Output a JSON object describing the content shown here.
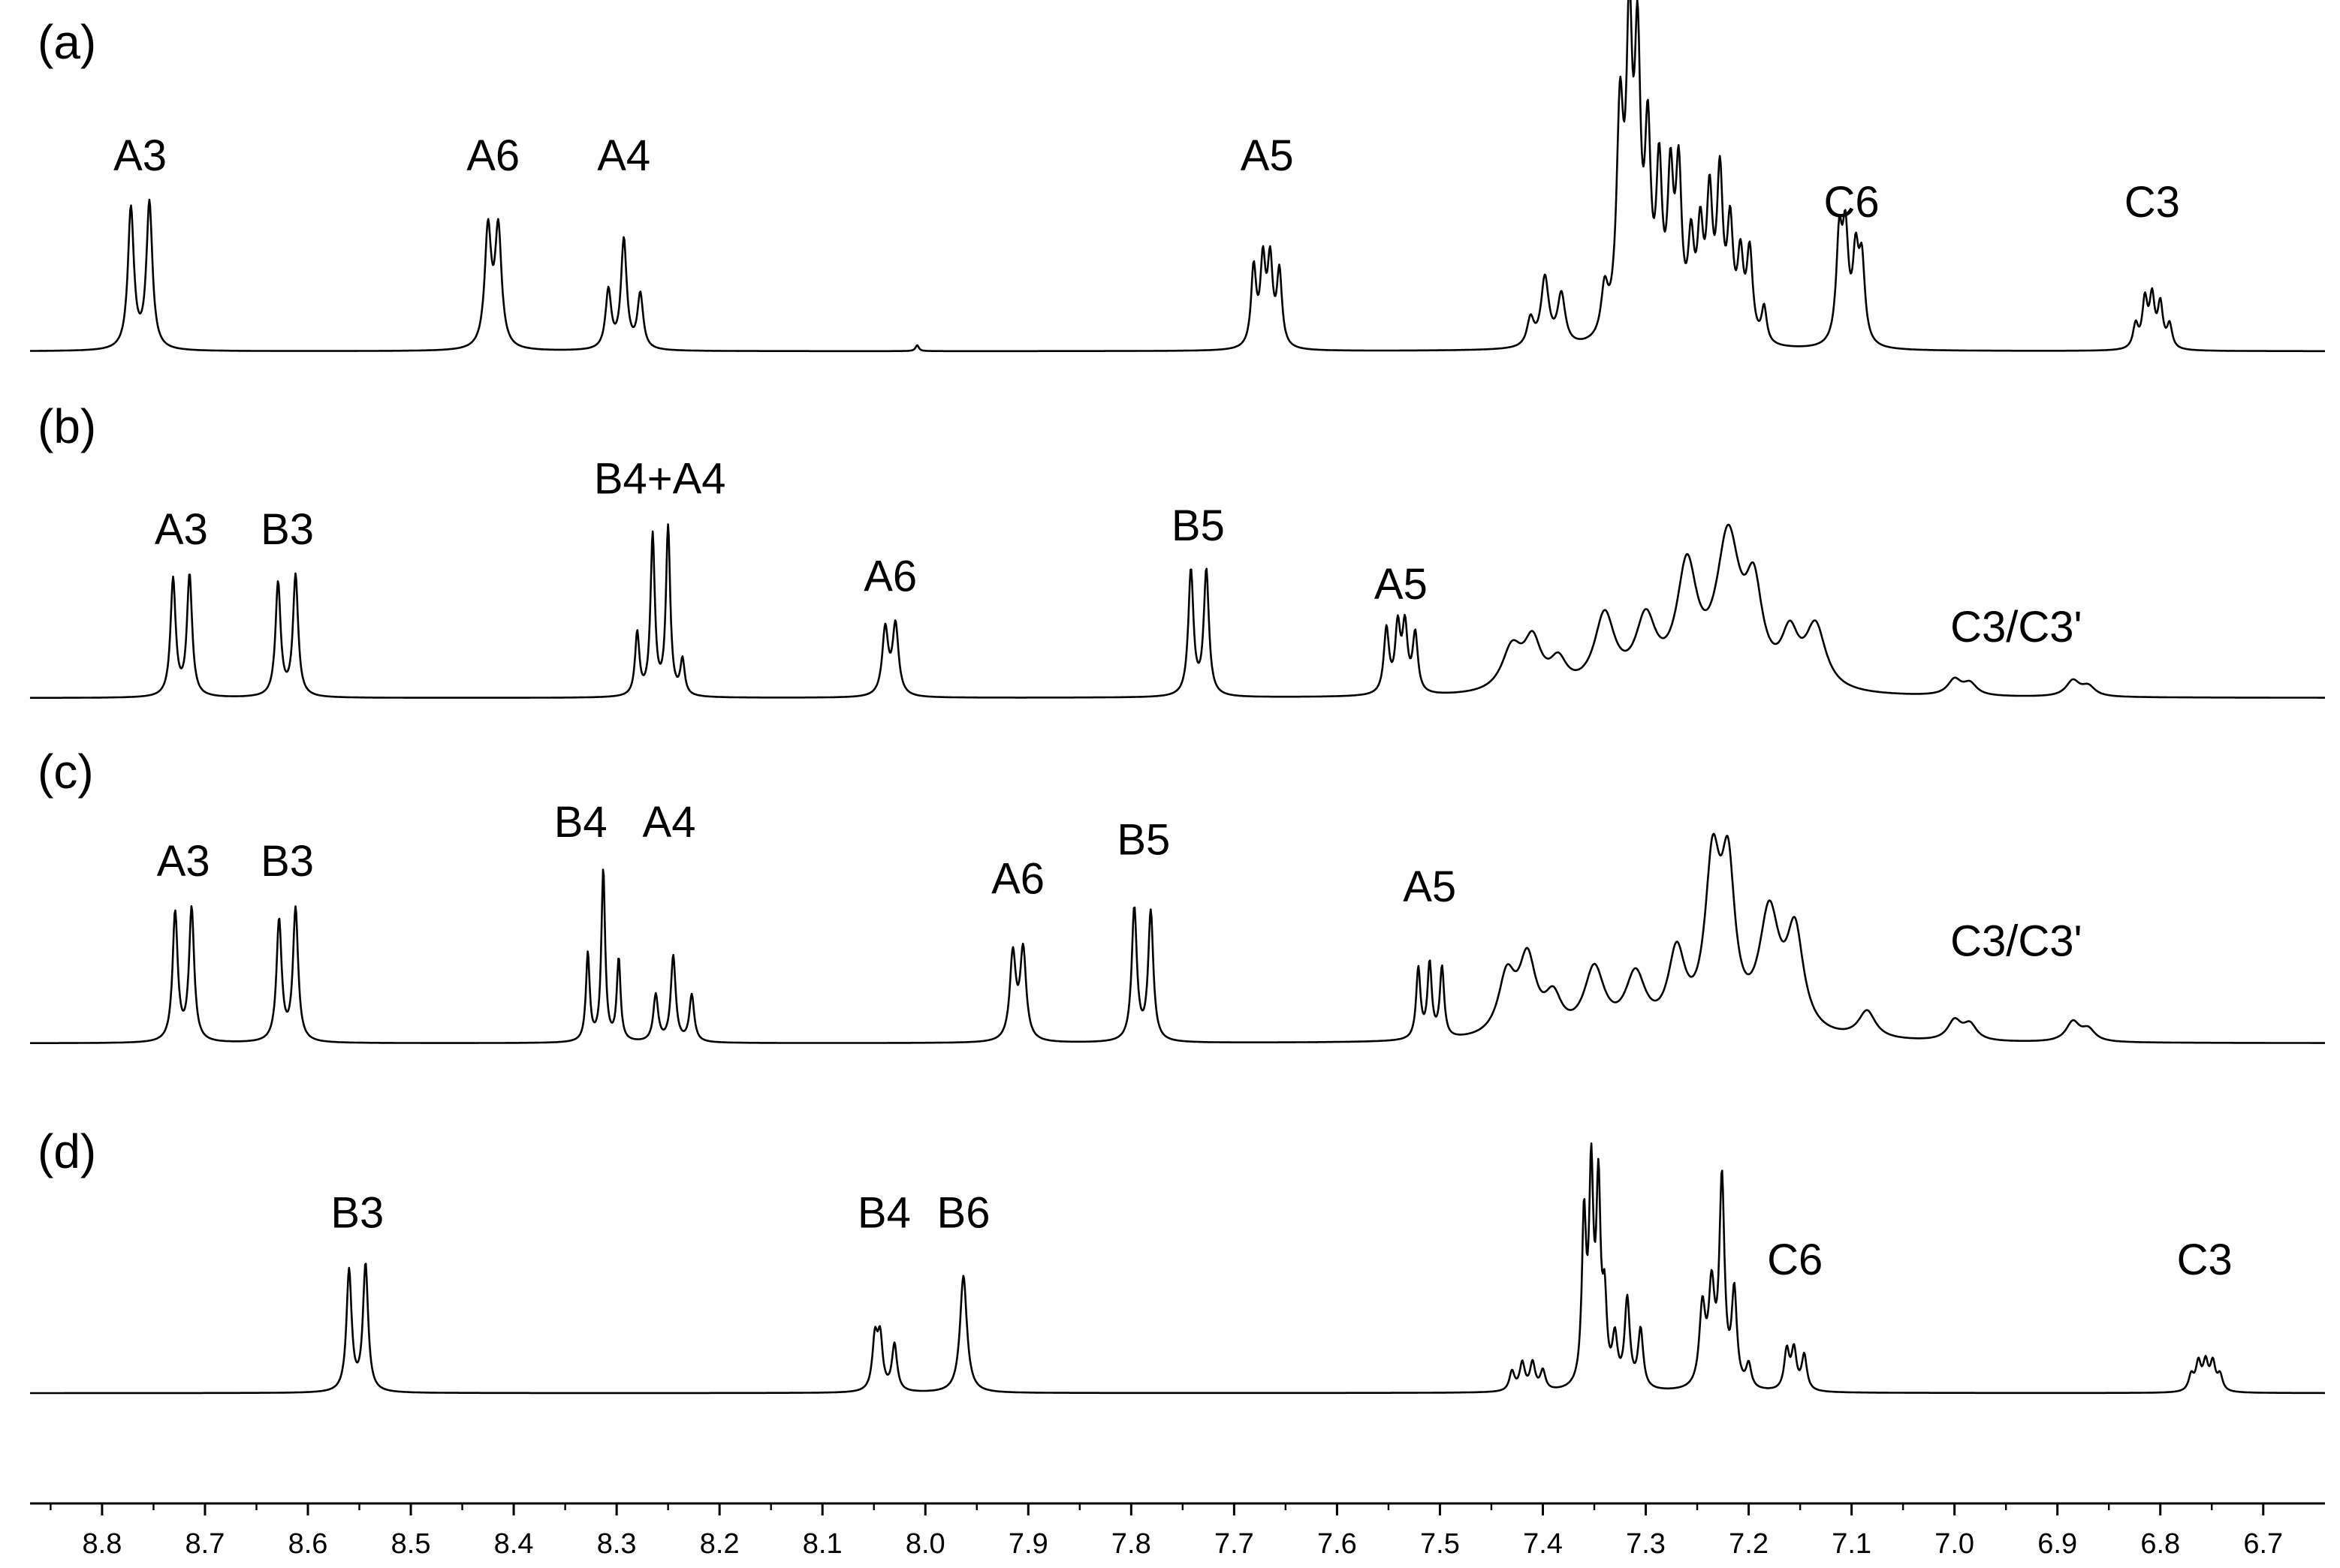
{
  "chart_data": {
    "type": "line",
    "title": "",
    "xlabel": "",
    "ylabel": "",
    "xlim": [
      8.87,
      6.64
    ],
    "x_reversed": true,
    "x_ticks": [
      8.8,
      8.7,
      8.6,
      8.5,
      8.4,
      8.3,
      8.2,
      8.1,
      8.0,
      7.9,
      7.8,
      7.7,
      7.6,
      7.5,
      7.4,
      7.3,
      7.2,
      7.1,
      7.0,
      6.9,
      6.8,
      6.7
    ],
    "x_tick_labels": [
      "8.8",
      "8.7",
      "8.6",
      "8.5",
      "8.4",
      "8.3",
      "8.2",
      "8.1",
      "8.0",
      "7.9",
      "7.8",
      "7.7",
      "7.6",
      "7.5",
      "7.4",
      "7.3",
      "7.2",
      "7.1",
      "7.0",
      "6.9",
      "6.8",
      "6.7"
    ],
    "grid": false,
    "series": [
      {
        "name": "(a)",
        "label": "(a)",
        "peaks": [
          {
            "ppm": 8.772,
            "h": 0.72,
            "w": 0.0035
          },
          {
            "ppm": 8.754,
            "h": 0.75,
            "w": 0.0035
          },
          {
            "ppm": 8.425,
            "h": 0.6,
            "w": 0.0038
          },
          {
            "ppm": 8.415,
            "h": 0.6,
            "w": 0.0038
          },
          {
            "ppm": 8.308,
            "h": 0.3,
            "w": 0.0033
          },
          {
            "ppm": 8.293,
            "h": 0.56,
            "w": 0.0033
          },
          {
            "ppm": 8.277,
            "h": 0.28,
            "w": 0.0033
          },
          {
            "ppm": 8.008,
            "h": 0.03,
            "w": 0.002
          },
          {
            "ppm": 7.681,
            "h": 0.4,
            "w": 0.003
          },
          {
            "ppm": 7.672,
            "h": 0.42,
            "w": 0.003
          },
          {
            "ppm": 7.665,
            "h": 0.42,
            "w": 0.003
          },
          {
            "ppm": 7.656,
            "h": 0.38,
            "w": 0.003
          },
          {
            "ppm": 7.412,
            "h": 0.14,
            "w": 0.004
          },
          {
            "ppm": 7.398,
            "h": 0.35,
            "w": 0.0045
          },
          {
            "ppm": 7.382,
            "h": 0.26,
            "w": 0.0045
          },
          {
            "ppm": 7.34,
            "h": 0.24,
            "w": 0.004
          },
          {
            "ppm": 7.325,
            "h": 1.1,
            "w": 0.004
          },
          {
            "ppm": 7.316,
            "h": 1.45,
            "w": 0.0035
          },
          {
            "ppm": 7.308,
            "h": 1.35,
            "w": 0.0035
          },
          {
            "ppm": 7.298,
            "h": 0.95,
            "w": 0.0035
          },
          {
            "ppm": 7.287,
            "h": 0.8,
            "w": 0.0035
          },
          {
            "ppm": 7.276,
            "h": 0.75,
            "w": 0.0035
          },
          {
            "ppm": 7.268,
            "h": 0.8,
            "w": 0.0035
          },
          {
            "ppm": 7.256,
            "h": 0.45,
            "w": 0.0035
          },
          {
            "ppm": 7.247,
            "h": 0.5,
            "w": 0.0035
          },
          {
            "ppm": 7.238,
            "h": 0.68,
            "w": 0.0035
          },
          {
            "ppm": 7.228,
            "h": 0.8,
            "w": 0.0035
          },
          {
            "ppm": 7.218,
            "h": 0.55,
            "w": 0.0035
          },
          {
            "ppm": 7.208,
            "h": 0.4,
            "w": 0.0035
          },
          {
            "ppm": 7.199,
            "h": 0.45,
            "w": 0.0035
          },
          {
            "ppm": 7.185,
            "h": 0.18,
            "w": 0.003
          },
          {
            "ppm": 7.112,
            "h": 0.52,
            "w": 0.0035
          },
          {
            "ppm": 7.106,
            "h": 0.52,
            "w": 0.0035
          },
          {
            "ppm": 7.096,
            "h": 0.42,
            "w": 0.0035
          },
          {
            "ppm": 7.09,
            "h": 0.4,
            "w": 0.0035
          },
          {
            "ppm": 6.824,
            "h": 0.12,
            "w": 0.003
          },
          {
            "ppm": 6.815,
            "h": 0.24,
            "w": 0.003
          },
          {
            "ppm": 6.808,
            "h": 0.25,
            "w": 0.003
          },
          {
            "ppm": 6.8,
            "h": 0.22,
            "w": 0.003
          },
          {
            "ppm": 6.791,
            "h": 0.12,
            "w": 0.003
          }
        ],
        "annotations": [
          {
            "text": "A3",
            "ppm": 8.763,
            "h": 0.82
          },
          {
            "text": "A6",
            "ppm": 8.42,
            "h": 0.82
          },
          {
            "text": "A4",
            "ppm": 8.293,
            "h": 0.82
          },
          {
            "text": "A5",
            "ppm": 7.668,
            "h": 0.82
          },
          {
            "text": "C6",
            "ppm": 7.1,
            "h": 0.58
          },
          {
            "text": "C3",
            "ppm": 6.808,
            "h": 0.58
          }
        ]
      },
      {
        "name": "(b)",
        "label": "(b)",
        "peaks": [
          {
            "ppm": 8.731,
            "h": 0.6,
            "w": 0.003
          },
          {
            "ppm": 8.715,
            "h": 0.62,
            "w": 0.003
          },
          {
            "ppm": 8.629,
            "h": 0.58,
            "w": 0.003
          },
          {
            "ppm": 8.612,
            "h": 0.62,
            "w": 0.003
          },
          {
            "ppm": 8.28,
            "h": 0.32,
            "w": 0.0025
          },
          {
            "ppm": 8.265,
            "h": 0.82,
            "w": 0.0025
          },
          {
            "ppm": 8.25,
            "h": 0.86,
            "w": 0.0025
          },
          {
            "ppm": 8.236,
            "h": 0.18,
            "w": 0.0025
          },
          {
            "ppm": 8.039,
            "h": 0.34,
            "w": 0.0035
          },
          {
            "ppm": 8.029,
            "h": 0.36,
            "w": 0.0035
          },
          {
            "ppm": 7.742,
            "h": 0.64,
            "w": 0.003
          },
          {
            "ppm": 7.727,
            "h": 0.64,
            "w": 0.003
          },
          {
            "ppm": 7.552,
            "h": 0.33,
            "w": 0.003
          },
          {
            "ppm": 7.541,
            "h": 0.33,
            "w": 0.003
          },
          {
            "ppm": 7.534,
            "h": 0.33,
            "w": 0.003
          },
          {
            "ppm": 7.524,
            "h": 0.3,
            "w": 0.003
          },
          {
            "ppm": 7.43,
            "h": 0.22,
            "w": 0.012
          },
          {
            "ppm": 7.41,
            "h": 0.24,
            "w": 0.01
          },
          {
            "ppm": 7.385,
            "h": 0.14,
            "w": 0.01
          },
          {
            "ppm": 7.34,
            "h": 0.38,
            "w": 0.012
          },
          {
            "ppm": 7.3,
            "h": 0.34,
            "w": 0.012
          },
          {
            "ppm": 7.26,
            "h": 0.6,
            "w": 0.012
          },
          {
            "ppm": 7.22,
            "h": 0.75,
            "w": 0.014
          },
          {
            "ppm": 7.195,
            "h": 0.45,
            "w": 0.01
          },
          {
            "ppm": 7.16,
            "h": 0.25,
            "w": 0.01
          },
          {
            "ppm": 7.135,
            "h": 0.32,
            "w": 0.012
          },
          {
            "ppm": 7.0,
            "h": 0.08,
            "w": 0.008
          },
          {
            "ppm": 6.985,
            "h": 0.06,
            "w": 0.008
          },
          {
            "ppm": 6.885,
            "h": 0.08,
            "w": 0.008
          },
          {
            "ppm": 6.87,
            "h": 0.05,
            "w": 0.008
          }
        ],
        "annotations": [
          {
            "text": "A3",
            "ppm": 8.723,
            "h": 0.68
          },
          {
            "text": "B3",
            "ppm": 8.62,
            "h": 0.68
          },
          {
            "text": "B4+A4",
            "ppm": 8.258,
            "h": 0.94
          },
          {
            "text": "A6",
            "ppm": 8.034,
            "h": 0.44
          },
          {
            "text": "B5",
            "ppm": 7.735,
            "h": 0.7
          },
          {
            "text": "A5",
            "ppm": 7.538,
            "h": 0.4
          },
          {
            "text": "C3/C3'",
            "ppm": 6.94,
            "h": 0.18
          }
        ]
      },
      {
        "name": "(c)",
        "label": "(c)",
        "peaks": [
          {
            "ppm": 8.729,
            "h": 0.66,
            "w": 0.003
          },
          {
            "ppm": 8.713,
            "h": 0.68,
            "w": 0.003
          },
          {
            "ppm": 8.628,
            "h": 0.62,
            "w": 0.003
          },
          {
            "ppm": 8.612,
            "h": 0.68,
            "w": 0.003
          },
          {
            "ppm": 8.328,
            "h": 0.45,
            "w": 0.0022
          },
          {
            "ppm": 8.313,
            "h": 0.88,
            "w": 0.0022
          },
          {
            "ppm": 8.298,
            "h": 0.42,
            "w": 0.0022
          },
          {
            "ppm": 8.262,
            "h": 0.24,
            "w": 0.0028
          },
          {
            "ppm": 8.245,
            "h": 0.44,
            "w": 0.0028
          },
          {
            "ppm": 8.227,
            "h": 0.24,
            "w": 0.0028
          },
          {
            "ppm": 7.915,
            "h": 0.44,
            "w": 0.0035
          },
          {
            "ppm": 7.905,
            "h": 0.46,
            "w": 0.0035
          },
          {
            "ppm": 7.797,
            "h": 0.68,
            "w": 0.003
          },
          {
            "ppm": 7.781,
            "h": 0.66,
            "w": 0.003
          },
          {
            "ppm": 7.521,
            "h": 0.36,
            "w": 0.0025
          },
          {
            "ppm": 7.51,
            "h": 0.38,
            "w": 0.0025
          },
          {
            "ppm": 7.498,
            "h": 0.36,
            "w": 0.0025
          },
          {
            "ppm": 7.435,
            "h": 0.3,
            "w": 0.01
          },
          {
            "ppm": 7.415,
            "h": 0.38,
            "w": 0.01
          },
          {
            "ppm": 7.39,
            "h": 0.18,
            "w": 0.01
          },
          {
            "ppm": 7.35,
            "h": 0.34,
            "w": 0.012
          },
          {
            "ppm": 7.31,
            "h": 0.3,
            "w": 0.012
          },
          {
            "ppm": 7.27,
            "h": 0.4,
            "w": 0.01
          },
          {
            "ppm": 7.235,
            "h": 0.82,
            "w": 0.009
          },
          {
            "ppm": 7.22,
            "h": 0.75,
            "w": 0.008
          },
          {
            "ppm": 7.18,
            "h": 0.6,
            "w": 0.012
          },
          {
            "ppm": 7.155,
            "h": 0.5,
            "w": 0.01
          },
          {
            "ppm": 7.085,
            "h": 0.14,
            "w": 0.01
          },
          {
            "ppm": 7.0,
            "h": 0.1,
            "w": 0.008
          },
          {
            "ppm": 6.985,
            "h": 0.08,
            "w": 0.008
          },
          {
            "ppm": 6.885,
            "h": 0.1,
            "w": 0.008
          },
          {
            "ppm": 6.87,
            "h": 0.06,
            "w": 0.008
          }
        ],
        "annotations": [
          {
            "text": "A3",
            "ppm": 8.721,
            "h": 0.75
          },
          {
            "text": "B3",
            "ppm": 8.62,
            "h": 0.75
          },
          {
            "text": "B4",
            "ppm": 8.335,
            "h": 0.95
          },
          {
            "text": "A4",
            "ppm": 8.249,
            "h": 0.95
          },
          {
            "text": "A6",
            "ppm": 7.91,
            "h": 0.66
          },
          {
            "text": "B5",
            "ppm": 7.788,
            "h": 0.86
          },
          {
            "text": "A5",
            "ppm": 7.51,
            "h": 0.62
          },
          {
            "text": "C3/C3'",
            "ppm": 6.94,
            "h": 0.34
          }
        ]
      },
      {
        "name": "(d)",
        "label": "(d)",
        "peaks": [
          {
            "ppm": 8.56,
            "h": 0.62,
            "w": 0.003
          },
          {
            "ppm": 8.544,
            "h": 0.65,
            "w": 0.003
          },
          {
            "ppm": 8.049,
            "h": 0.26,
            "w": 0.003
          },
          {
            "ppm": 8.044,
            "h": 0.26,
            "w": 0.003
          },
          {
            "ppm": 8.03,
            "h": 0.24,
            "w": 0.003
          },
          {
            "ppm": 7.963,
            "h": 0.6,
            "w": 0.004
          },
          {
            "ppm": 7.43,
            "h": 0.1,
            "w": 0.003
          },
          {
            "ppm": 7.42,
            "h": 0.14,
            "w": 0.003
          },
          {
            "ppm": 7.41,
            "h": 0.14,
            "w": 0.003
          },
          {
            "ppm": 7.4,
            "h": 0.1,
            "w": 0.003
          },
          {
            "ppm": 7.36,
            "h": 0.84,
            "w": 0.0025
          },
          {
            "ppm": 7.353,
            "h": 1.05,
            "w": 0.0025
          },
          {
            "ppm": 7.346,
            "h": 0.98,
            "w": 0.0025
          },
          {
            "ppm": 7.34,
            "h": 0.4,
            "w": 0.0025
          },
          {
            "ppm": 7.33,
            "h": 0.24,
            "w": 0.003
          },
          {
            "ppm": 7.318,
            "h": 0.45,
            "w": 0.003
          },
          {
            "ppm": 7.305,
            "h": 0.3,
            "w": 0.003
          },
          {
            "ppm": 7.245,
            "h": 0.4,
            "w": 0.0035
          },
          {
            "ppm": 7.236,
            "h": 0.48,
            "w": 0.0035
          },
          {
            "ppm": 7.226,
            "h": 1.05,
            "w": 0.003
          },
          {
            "ppm": 7.214,
            "h": 0.48,
            "w": 0.003
          },
          {
            "ppm": 7.2,
            "h": 0.12,
            "w": 0.003
          },
          {
            "ppm": 7.163,
            "h": 0.2,
            "w": 0.003
          },
          {
            "ppm": 7.156,
            "h": 0.2,
            "w": 0.003
          },
          {
            "ppm": 7.146,
            "h": 0.18,
            "w": 0.003
          },
          {
            "ppm": 6.77,
            "h": 0.08,
            "w": 0.003
          },
          {
            "ppm": 6.763,
            "h": 0.14,
            "w": 0.003
          },
          {
            "ppm": 6.756,
            "h": 0.14,
            "w": 0.003
          },
          {
            "ppm": 6.749,
            "h": 0.14,
            "w": 0.003
          },
          {
            "ppm": 6.742,
            "h": 0.08,
            "w": 0.003
          }
        ],
        "annotations": [
          {
            "text": "B3",
            "ppm": 8.552,
            "h": 0.74
          },
          {
            "text": "B4",
            "ppm": 8.04,
            "h": 0.74
          },
          {
            "text": "B6",
            "ppm": 7.963,
            "h": 0.74
          },
          {
            "text": "C6",
            "ppm": 7.155,
            "h": 0.5
          },
          {
            "text": "C3",
            "ppm": 6.757,
            "h": 0.5
          }
        ]
      }
    ]
  }
}
